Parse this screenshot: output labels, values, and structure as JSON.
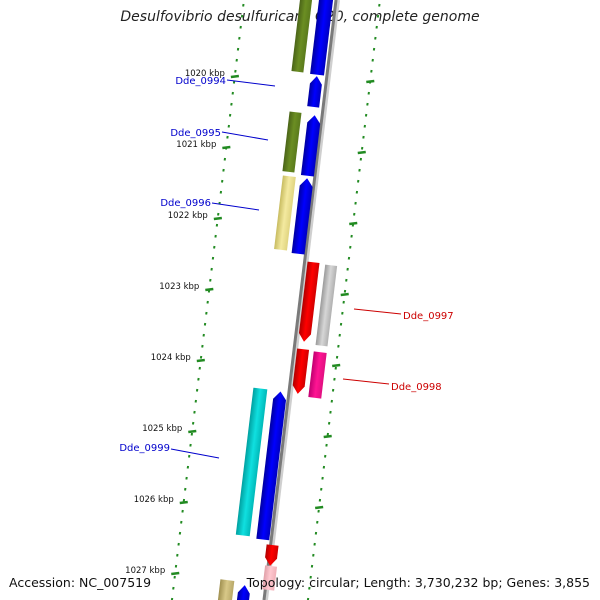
{
  "title": "Desulfovibrio desulfuricans G20, complete genome",
  "footer": {
    "accession": "Accession: NC_007519",
    "summary": "Topology: circular; Length: 3,730,232 bp; Genes: 3,855"
  },
  "ticks": [
    "1020 kbp",
    "1021 kbp",
    "1022 kbp",
    "1023 kbp",
    "1024 kbp",
    "1025 kbp",
    "1026 kbp",
    "1027 kbp"
  ],
  "gene_labels": [
    {
      "text": "Dde_0994",
      "color": "#0000cc"
    },
    {
      "text": "Dde_0995",
      "color": "#0000cc"
    },
    {
      "text": "Dde_0996",
      "color": "#0000cc"
    },
    {
      "text": "Dde_0997",
      "color": "#cc0000"
    },
    {
      "text": "Dde_0998",
      "color": "#cc0000"
    },
    {
      "text": "Dde_0999",
      "color": "#0000cc"
    }
  ],
  "colors": {
    "forward": "#0000ff",
    "reverse": "#ff0000",
    "cog_olive": "#6b8e23",
    "cog_khaki": "#f0e68c",
    "cog_cyan": "#00d0d0",
    "cog_gray": "#c0c0c0",
    "cog_magenta": "#ff1493",
    "cog_pink": "#ffb6c1",
    "cog_tan": "#c8b878",
    "dots": "#228b22"
  }
}
